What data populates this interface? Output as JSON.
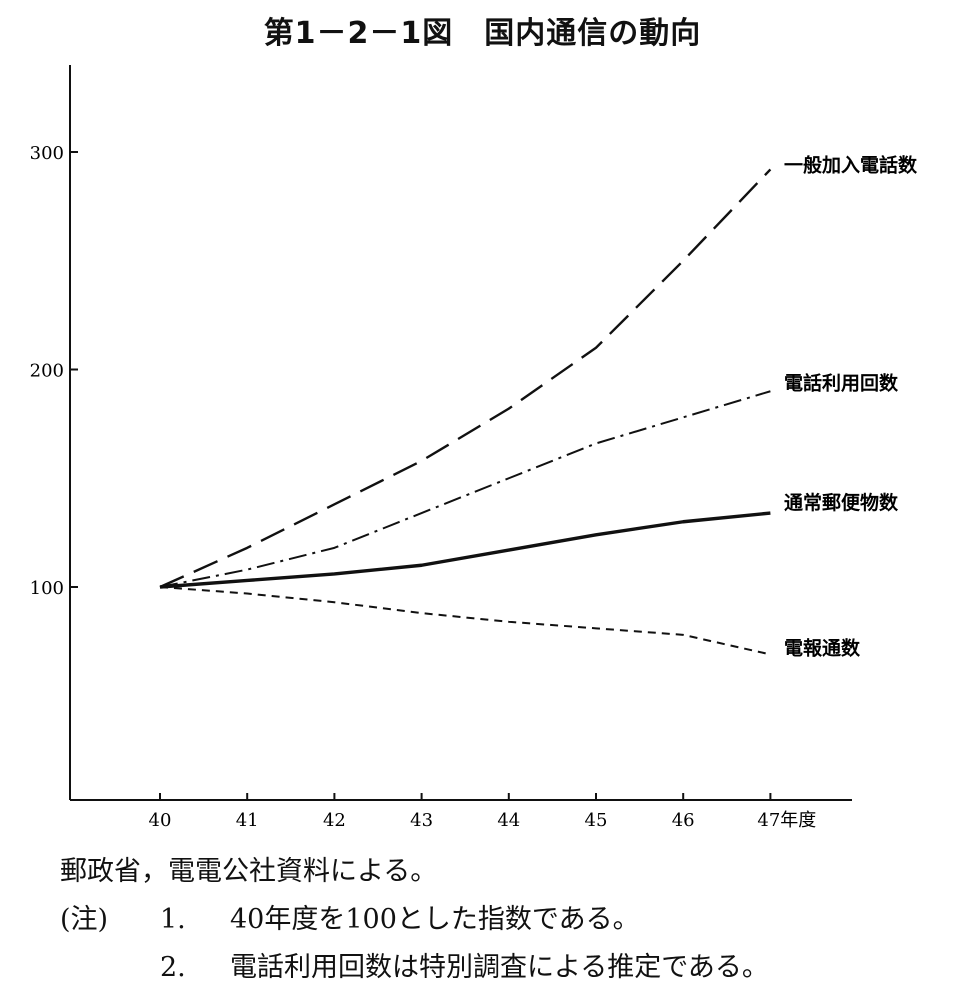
{
  "chart_data": {
    "type": "line",
    "title": "第1－2－1図　国内通信の動向",
    "x": [
      40,
      41,
      42,
      43,
      44,
      45,
      46,
      47
    ],
    "x_tick_labels": [
      "40",
      "41",
      "42",
      "43",
      "44",
      "45",
      "46",
      "47年度"
    ],
    "y_ticks": [
      100,
      200,
      300
    ],
    "ylim": [
      20,
      340
    ],
    "xlim": [
      39,
      47.95
    ],
    "grid": false,
    "series": [
      {
        "name": "一般加入電話数",
        "values": [
          100,
          118,
          138,
          158,
          182,
          210,
          250,
          292
        ],
        "line_style": "long-dash",
        "color": "#111111"
      },
      {
        "name": "電話利用回数",
        "values": [
          100,
          108,
          118,
          134,
          150,
          166,
          178,
          190
        ],
        "line_style": "dash-dot",
        "color": "#111111"
      },
      {
        "name": "通常郵便物数",
        "values": [
          100,
          103,
          106,
          110,
          117,
          124,
          130,
          134
        ],
        "line_style": "solid",
        "color": "#111111"
      },
      {
        "name": "電報通数",
        "values": [
          100,
          97,
          93,
          88,
          84,
          81,
          78,
          69
        ],
        "line_style": "short-dash",
        "color": "#111111"
      }
    ]
  },
  "notes": {
    "source": "郵政省，電電公社資料による。",
    "note_prefix": "(注)",
    "note1_num": "1.",
    "note1_text": "40年度を100とした指数である。",
    "note2_num": "2.",
    "note2_text": "電話利用回数は特別調査による推定である。"
  }
}
